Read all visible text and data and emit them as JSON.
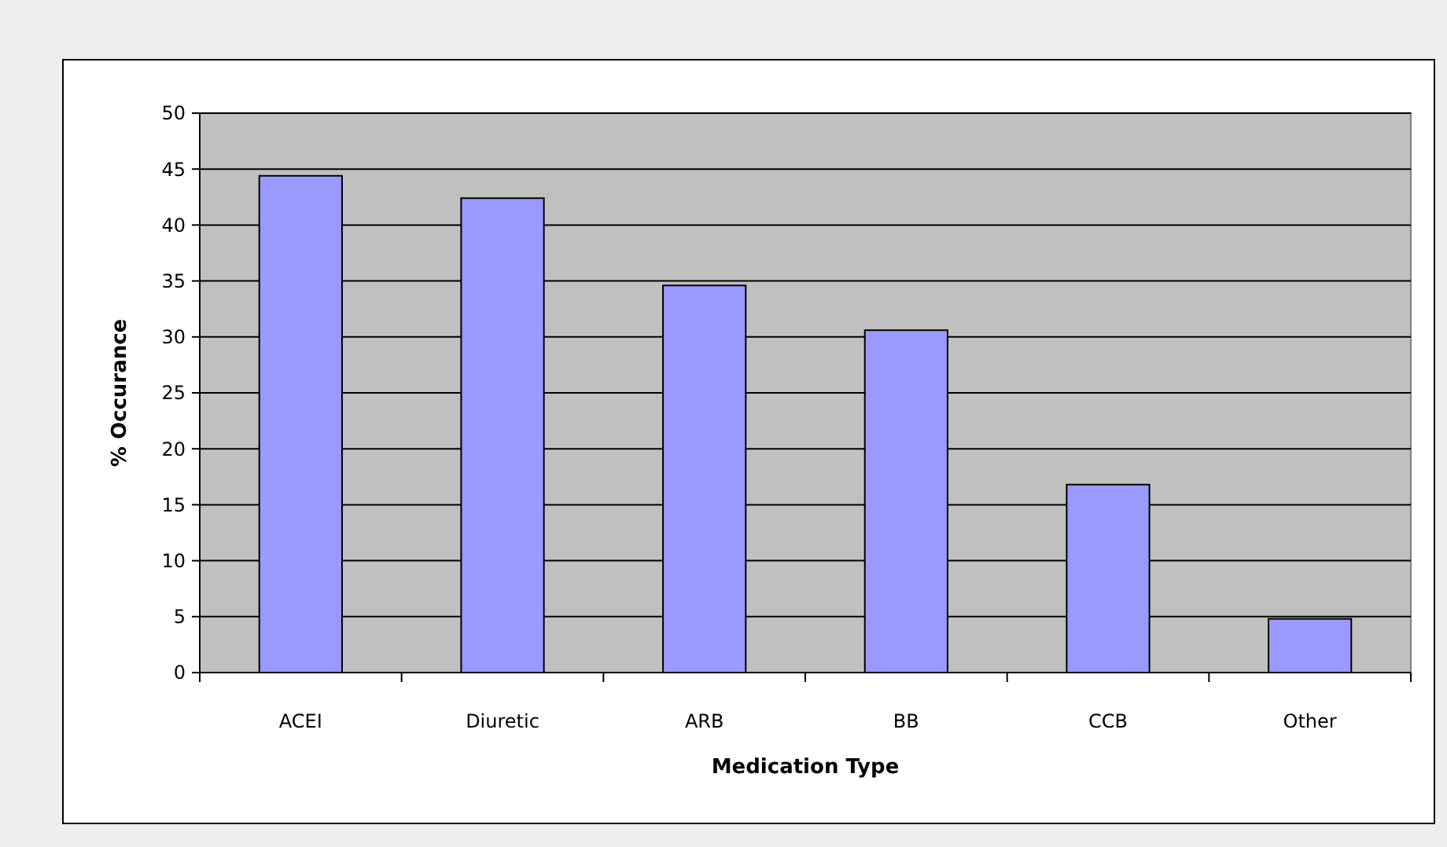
{
  "chart_data": {
    "type": "bar",
    "xlabel": "Medication Type",
    "ylabel": "% Occurance",
    "categories": [
      "ACEI",
      "Diuretic",
      "ARB",
      "BB",
      "CCB",
      "Other"
    ],
    "values": [
      44.4,
      42.4,
      34.6,
      30.6,
      16.8,
      4.8
    ],
    "color": "#9999ff",
    "ylim": [
      0,
      50
    ],
    "yticks": [
      0,
      5,
      10,
      15,
      20,
      25,
      30,
      35,
      40,
      45,
      50
    ],
    "grid": "y"
  }
}
